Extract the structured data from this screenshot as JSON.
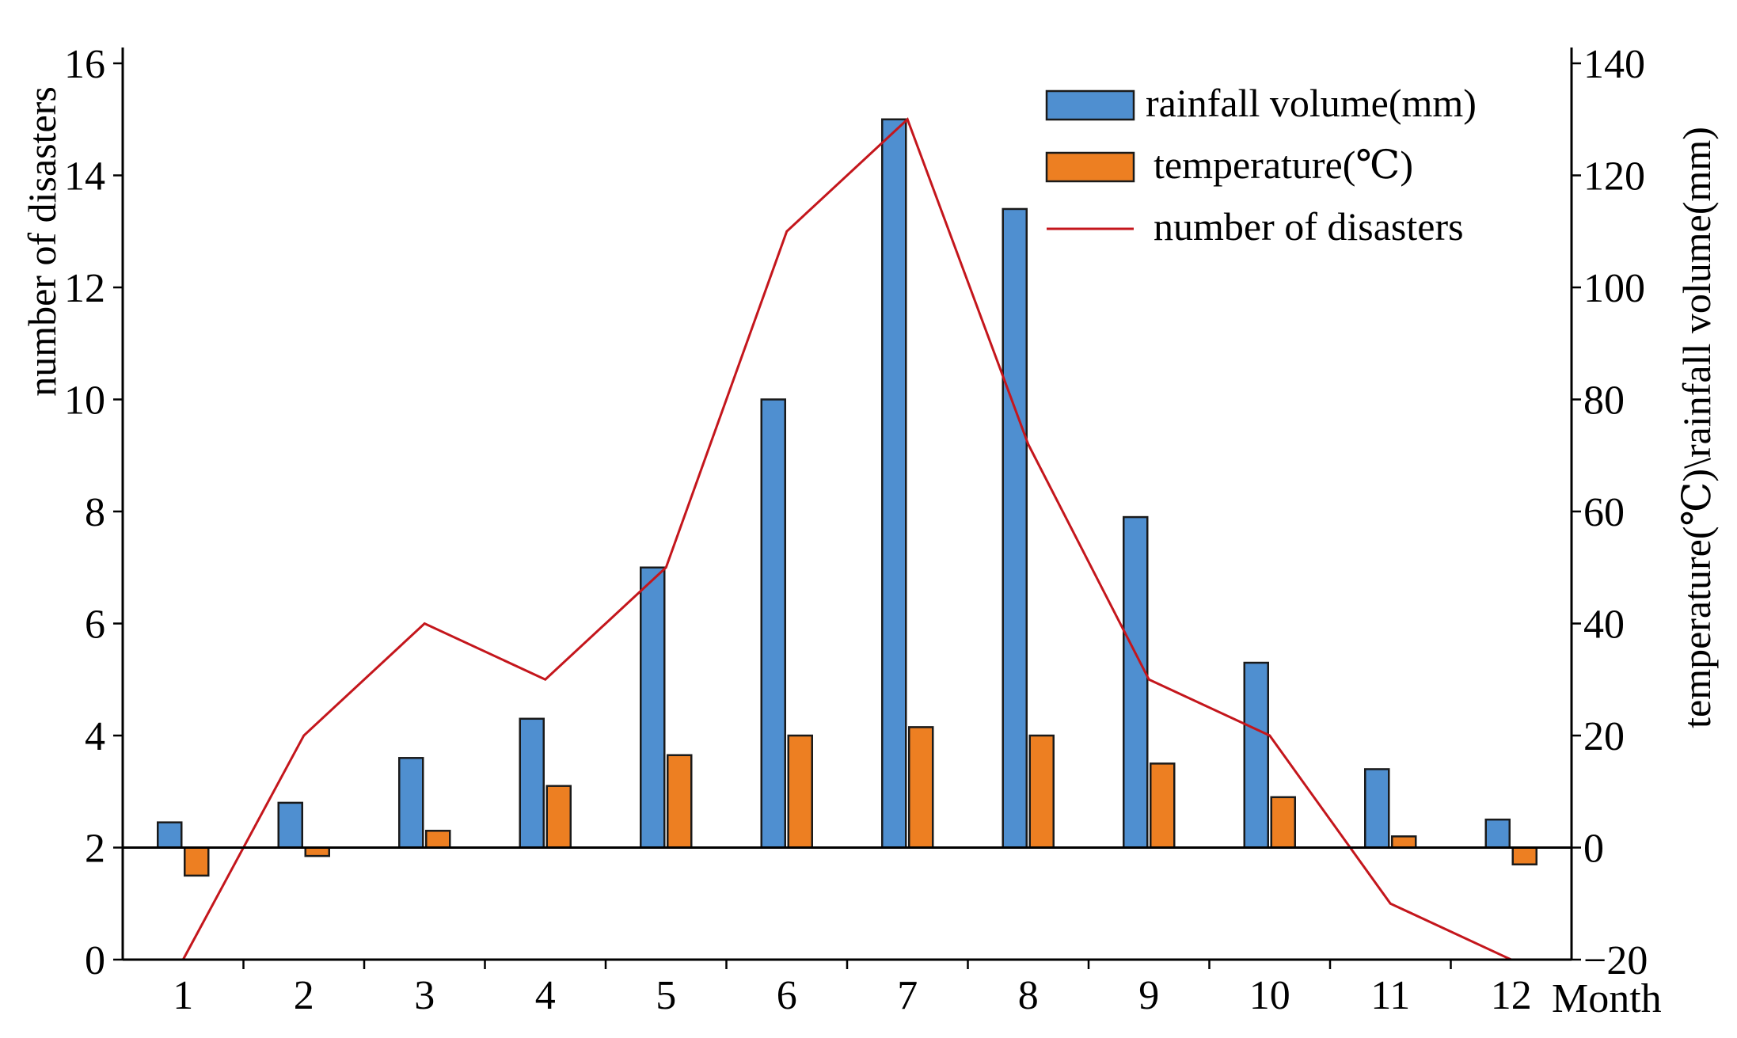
{
  "chart_data": {
    "type": "bar",
    "title": "",
    "categories": [
      "1",
      "2",
      "3",
      "4",
      "5",
      "6",
      "7",
      "8",
      "9",
      "10",
      "11",
      "12"
    ],
    "xlabel": "Month",
    "y_left": {
      "label": "number of disasters",
      "ylim": [
        0,
        16
      ],
      "ticks": [
        0,
        2,
        4,
        6,
        8,
        10,
        12,
        14,
        16
      ]
    },
    "y_right": {
      "label": "temperature(℃)\\rainfall volume(mm)",
      "ylim": [
        -20,
        140
      ],
      "ticks": [
        -20,
        0,
        20,
        40,
        60,
        80,
        100,
        120,
        140
      ]
    },
    "series": [
      {
        "name": "rainfall volume(mm)",
        "type": "bar",
        "axis": "right",
        "color": "#4f8fd0",
        "values": [
          4.5,
          8,
          16,
          23,
          50,
          80,
          130,
          114,
          59,
          33,
          14,
          5
        ]
      },
      {
        "name": "temperature(℃)",
        "type": "bar",
        "axis": "right",
        "color": "#ed7f22",
        "values": [
          -5,
          -1.5,
          3,
          11,
          16.5,
          20,
          21.5,
          20,
          15,
          9,
          2,
          -3
        ]
      },
      {
        "name": "number of disasters",
        "type": "line",
        "axis": "left",
        "color": "#c4161c",
        "values": [
          0,
          4,
          6,
          5,
          7,
          13,
          15,
          9.2,
          5,
          4,
          1,
          0
        ]
      }
    ],
    "legend": "top-right"
  }
}
